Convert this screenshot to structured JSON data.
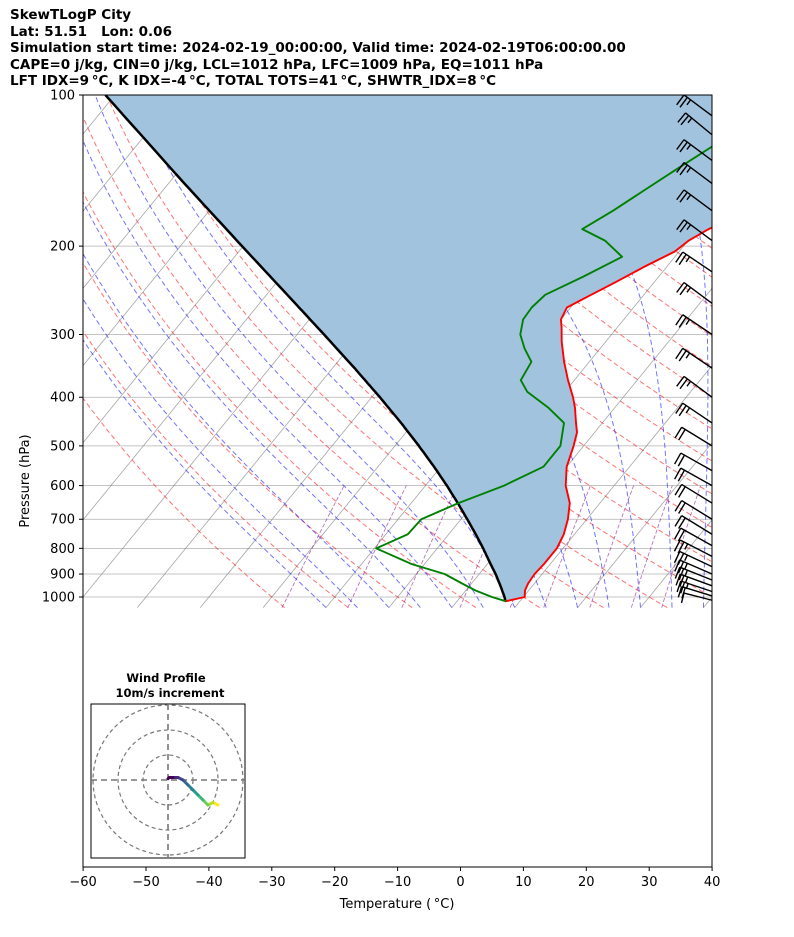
{
  "header": {
    "line1": "SkewTLogP City",
    "line2": "Lat: 51.51   Lon: 0.06",
    "line3": "Simulation start time: 2024-02-19_00:00:00, Valid time: 2024-02-19T06:00:00.00",
    "line4": "CAPE=0 j/kg, CIN=0 j/kg, LCL=1012 hPa, LFC=1009 hPa, EQ=1011 hPa",
    "line5": "LFT IDX=9 °C, K IDX=-4 °C, TOTAL TOTS=41 °C, SHWTR_IDX=8 °C"
  },
  "colors": {
    "temperature": "#ff0000",
    "dewpoint": "#008000",
    "parcel": "#000000",
    "cape_fill": "#a1c3de",
    "dry_adiabat": "#ff0000",
    "moist_adiabat": "#0000ff",
    "mixing_ratio": "#800080",
    "isotherm": "#808080"
  },
  "chart_data": {
    "type": "line",
    "subtype": "skew-T log-P diagram",
    "xlabel": "Temperature ( °C)",
    "ylabel": "Pressure (hPa)",
    "xlim": [
      -60,
      40
    ],
    "ylim": [
      1050,
      100
    ],
    "x_ticks": [
      "−60",
      "−50",
      "−40",
      "−30",
      "−20",
      "−10",
      "0",
      "10",
      "20",
      "30",
      "40"
    ],
    "y_ticks": [
      1000,
      900,
      800,
      700,
      600,
      500,
      400,
      300,
      200,
      100
    ],
    "y_scale": "log",
    "grid": true,
    "series": [
      {
        "role": "temperature",
        "pressure": [
          1020,
          1000,
          970,
          940,
          900,
          860,
          800,
          750,
          700,
          650,
          600,
          550,
          500,
          470,
          450,
          420,
          400,
          370,
          340,
          310,
          290,
          280,
          265,
          250,
          235,
          220,
          205,
          195,
          185,
          175,
          165,
          155,
          145,
          135,
          125,
          115,
          105,
          100
        ],
        "temperature_c": [
          7.7,
          10.2,
          9.4,
          9.0,
          8.8,
          9.0,
          9.0,
          8.3,
          7.0,
          5.2,
          2.3,
          0.0,
          -1.6,
          -2.8,
          -4.2,
          -6.3,
          -8.0,
          -11.0,
          -14.0,
          -17.0,
          -18.9,
          -20.0,
          -20.6,
          -18.4,
          -16.0,
          -13.6,
          -10.7,
          -9.9,
          -8.2,
          -5.8,
          -3.2,
          -0.5,
          1.5,
          3.5,
          5.5,
          7.2,
          8.5,
          8.8
        ]
      },
      {
        "role": "dewpoint",
        "pressure": [
          1020,
          1000,
          970,
          940,
          900,
          860,
          800,
          750,
          700,
          650,
          600,
          550,
          500,
          450,
          420,
          390,
          370,
          340,
          320,
          300,
          280,
          265,
          250,
          230,
          210,
          195,
          185,
          170,
          155,
          140,
          125,
          110,
          100
        ],
        "temperature_c": [
          7.8,
          5.0,
          1.5,
          -1.5,
          -5.5,
          -12.0,
          -19.7,
          -16.5,
          -16.3,
          -12.5,
          -7.5,
          -3.7,
          -3.7,
          -6.1,
          -10.5,
          -16.0,
          -18.5,
          -19.2,
          -22.0,
          -24.5,
          -26.0,
          -26.2,
          -25.7,
          -22.0,
          -18.4,
          -23.2,
          -28.3,
          -25.8,
          -23.5,
          -21.0,
          -18.0,
          -15.0,
          -12.0
        ]
      },
      {
        "role": "parcel",
        "pressure": [
          1020,
          1000,
          950,
          900,
          850,
          800,
          750,
          700,
          650,
          600,
          550,
          500,
          450,
          400,
          350,
          300,
          250,
          200,
          150,
          100
        ],
        "temperature_c": [
          7.7,
          7.0,
          4.9,
          2.6,
          0.0,
          -2.7,
          -5.7,
          -9.0,
          -12.6,
          -16.6,
          -21.1,
          -26.2,
          -32.0,
          -38.7,
          -46.5,
          -55.7,
          -66.7,
          -80.2,
          -97.5,
          -121.5
        ]
      }
    ],
    "wind_barbs": {
      "pressure": [
        1015,
        995,
        975,
        950,
        925,
        900,
        870,
        830,
        790,
        750,
        700,
        650,
        600,
        560,
        500,
        450,
        400,
        350,
        300,
        260,
        225,
        195,
        170,
        150,
        135,
        120,
        110
      ],
      "speed_kt": [
        10,
        20,
        25,
        25,
        25,
        25,
        25,
        25,
        20,
        20,
        20,
        20,
        20,
        20,
        20,
        25,
        25,
        25,
        25,
        25,
        25,
        25,
        25,
        25,
        25,
        25,
        25
      ],
      "direction_deg": [
        240,
        250,
        255,
        260,
        265,
        270,
        275,
        280,
        285,
        290,
        290,
        290,
        285,
        285,
        290,
        295,
        300,
        295,
        295,
        300,
        295,
        300,
        300,
        300,
        300,
        305,
        300
      ]
    },
    "hodograph": {
      "title": "Wind Profile",
      "subtitle": "10m/s increment",
      "u_ms": [
        20,
        18,
        16,
        14,
        12,
        10,
        8,
        6,
        4,
        2,
        0.5,
        0
      ],
      "v_ms": [
        -10,
        -9,
        -10,
        -8,
        -6,
        -4,
        -2,
        0,
        1,
        1,
        1,
        0.5
      ],
      "colormap": "viridis"
    }
  }
}
